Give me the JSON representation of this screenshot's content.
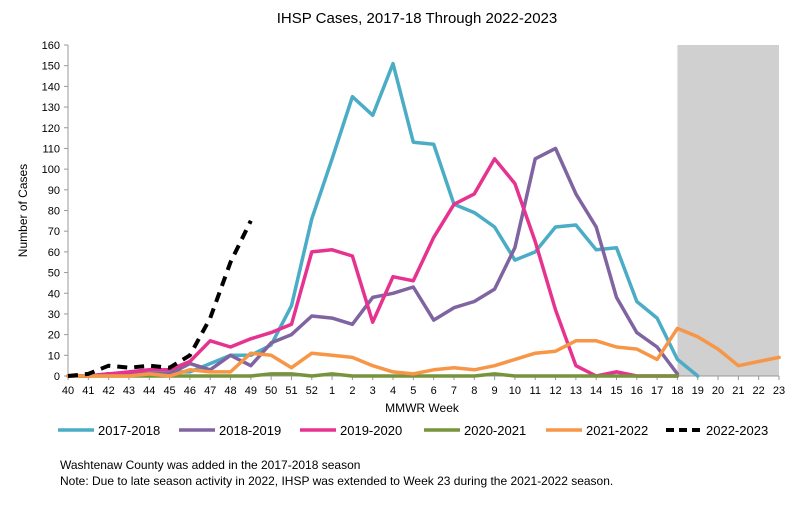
{
  "chart_data": {
    "type": "line",
    "title": "IHSP Cases, 2017-18 Through 2022-2023",
    "xlabel": "MMWR Week",
    "ylabel": "Number of Cases",
    "ylim": [
      0,
      160
    ],
    "yticks": [
      0,
      10,
      20,
      30,
      40,
      50,
      60,
      70,
      80,
      90,
      100,
      110,
      120,
      130,
      140,
      150,
      160
    ],
    "categories": [
      "40",
      "41",
      "42",
      "43",
      "44",
      "45",
      "46",
      "47",
      "48",
      "49",
      "50",
      "51",
      "52",
      "1",
      "2",
      "3",
      "4",
      "5",
      "6",
      "7",
      "8",
      "9",
      "10",
      "11",
      "12",
      "13",
      "14",
      "15",
      "16",
      "17",
      "18",
      "19",
      "20",
      "21",
      "22",
      "23"
    ],
    "shaded_region": {
      "from_week": "18",
      "to_week": "23",
      "color": "#d0d0d0"
    },
    "series": [
      {
        "name": "2017-2018",
        "color": "#4bacc6",
        "dash": false,
        "values": [
          0,
          0,
          1,
          1,
          2,
          2,
          2,
          6,
          10,
          10,
          15,
          34,
          76,
          105,
          135,
          126,
          151,
          113,
          112,
          83,
          79,
          72,
          56,
          60,
          72,
          73,
          61,
          62,
          36,
          28,
          8,
          0,
          null,
          null,
          null,
          null
        ]
      },
      {
        "name": "2018-2019",
        "color": "#8064a2",
        "dash": false,
        "values": [
          0,
          0,
          1,
          1,
          1,
          1,
          6,
          3,
          10,
          5,
          16,
          20,
          29,
          28,
          25,
          38,
          40,
          43,
          27,
          33,
          36,
          42,
          62,
          105,
          110,
          88,
          72,
          38,
          21,
          14,
          1,
          null,
          null,
          null,
          null,
          null
        ]
      },
      {
        "name": "2019-2020",
        "color": "#e6338f",
        "dash": false,
        "values": [
          0,
          0,
          1,
          2,
          3,
          3,
          7,
          17,
          14,
          18,
          21,
          25,
          60,
          61,
          58,
          26,
          48,
          46,
          67,
          83,
          88,
          105,
          93,
          65,
          32,
          5,
          0,
          2,
          0,
          0,
          0,
          null,
          null,
          null,
          null,
          null
        ]
      },
      {
        "name": "2020-2021",
        "color": "#77933c",
        "dash": false,
        "values": [
          0,
          0,
          0,
          0,
          0,
          0,
          0,
          0,
          0,
          0,
          1,
          1,
          0,
          1,
          0,
          0,
          0,
          0,
          0,
          0,
          0,
          1,
          0,
          0,
          0,
          0,
          0,
          0,
          0,
          0,
          0,
          null,
          null,
          null,
          null,
          null
        ]
      },
      {
        "name": "2021-2022",
        "color": "#f79646",
        "dash": false,
        "values": [
          0,
          0,
          0,
          0,
          1,
          0,
          3,
          2,
          2,
          11,
          10,
          4,
          11,
          10,
          9,
          5,
          2,
          1,
          3,
          4,
          3,
          5,
          8,
          11,
          12,
          17,
          17,
          14,
          13,
          8,
          23,
          19,
          13,
          5,
          7,
          9
        ]
      },
      {
        "name": "2022-2023",
        "color": "#000000",
        "dash": true,
        "values": [
          0,
          1,
          5,
          4,
          5,
          4,
          10,
          28,
          55,
          75,
          null,
          null,
          null,
          null,
          null,
          null,
          null,
          null,
          null,
          null,
          null,
          null,
          null,
          null,
          null,
          null,
          null,
          null,
          null,
          null,
          null,
          null,
          null,
          null,
          null,
          null
        ]
      }
    ],
    "legend_position": "bottom"
  },
  "notes": [
    "Washtenaw County was added in the 2017-2018 season",
    "Note: Due to late season activity in 2022, IHSP was extended to Week 23 during the 2021-2022 season."
  ]
}
